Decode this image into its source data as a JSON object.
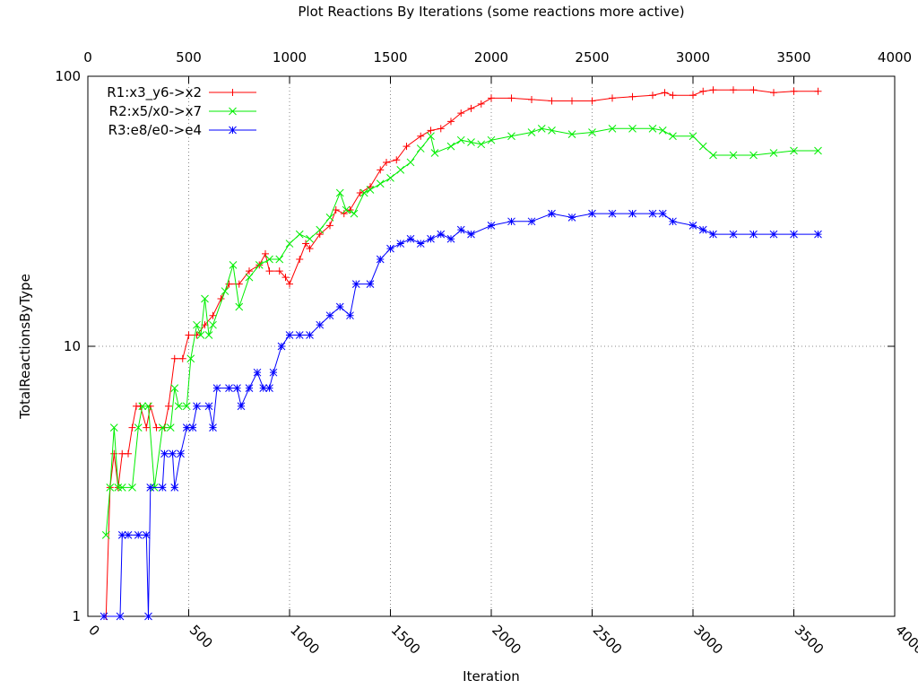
{
  "chart_data": {
    "type": "line",
    "title": "Plot Reactions By Iterations (some reactions more active)",
    "x_label": "Iteration",
    "y_label": "TotalReactionsByType",
    "xlim": [
      0,
      4000
    ],
    "xticks": [
      0,
      500,
      1000,
      1500,
      2000,
      2500,
      3000,
      3500,
      4000
    ],
    "ylim": [
      1,
      100
    ],
    "yticks": [
      1,
      10,
      100
    ],
    "y_scale": "log",
    "grid": true,
    "legend": "top-left",
    "series": [
      {
        "name": "R1:x3_y6->x2",
        "color": "#ff0000",
        "marker": "plus",
        "x": [
          90,
          110,
          130,
          150,
          170,
          200,
          220,
          240,
          260,
          290,
          310,
          340,
          380,
          400,
          430,
          470,
          500,
          540,
          580,
          620,
          660,
          700,
          750,
          800,
          850,
          880,
          900,
          950,
          980,
          1000,
          1050,
          1080,
          1100,
          1150,
          1200,
          1230,
          1270,
          1300,
          1350,
          1400,
          1450,
          1480,
          1530,
          1580,
          1650,
          1700,
          1750,
          1800,
          1850,
          1900,
          1950,
          2000,
          2100,
          2200,
          2300,
          2400,
          2500,
          2600,
          2700,
          2800,
          2860,
          2900,
          3000,
          3050,
          3100,
          3200,
          3300,
          3400,
          3500,
          3620
        ],
        "values": [
          1,
          3,
          4,
          3,
          4,
          4,
          5,
          6,
          6,
          5,
          6,
          5,
          5,
          6,
          9,
          9,
          11,
          11,
          12,
          13,
          15,
          17,
          17,
          19,
          20,
          22,
          19,
          19,
          18,
          17,
          21,
          24,
          23,
          26,
          28,
          32,
          31,
          32,
          37,
          39,
          45,
          48,
          49,
          55,
          60,
          63,
          64,
          68,
          73,
          76,
          79,
          83,
          83,
          82,
          81,
          81,
          81,
          83,
          84,
          85,
          87,
          85,
          85,
          88,
          89,
          89,
          89,
          87,
          88,
          88
        ]
      },
      {
        "name": "R2:x5/x0->x7",
        "color": "#00ee00",
        "marker": "cross",
        "x": [
          90,
          110,
          130,
          150,
          170,
          220,
          250,
          270,
          300,
          330,
          370,
          410,
          430,
          450,
          490,
          510,
          540,
          560,
          580,
          600,
          620,
          680,
          720,
          750,
          800,
          850,
          900,
          950,
          1000,
          1050,
          1100,
          1150,
          1200,
          1250,
          1280,
          1320,
          1370,
          1400,
          1450,
          1500,
          1550,
          1600,
          1650,
          1700,
          1720,
          1800,
          1850,
          1900,
          1950,
          2000,
          2100,
          2200,
          2250,
          2300,
          2400,
          2500,
          2600,
          2700,
          2800,
          2850,
          2900,
          3000,
          3050,
          3100,
          3200,
          3300,
          3400,
          3500,
          3620
        ],
        "values": [
          2,
          3,
          5,
          3,
          3,
          3,
          5,
          6,
          6,
          3,
          5,
          5,
          7,
          6,
          6,
          9,
          12,
          11,
          15,
          11,
          12,
          16,
          20,
          14,
          18,
          20,
          21,
          21,
          24,
          26,
          25,
          27,
          30,
          37,
          32,
          31,
          37,
          38,
          40,
          42,
          45,
          48,
          54,
          60,
          52,
          55,
          58,
          57,
          56,
          58,
          60,
          62,
          64,
          63,
          61,
          62,
          64,
          64,
          64,
          63,
          60,
          60,
          55,
          51,
          51,
          51,
          52,
          53,
          53
        ]
      },
      {
        "name": "R3:e8/e0->e4",
        "color": "#0000ff",
        "marker": "star",
        "x": [
          80,
          160,
          170,
          200,
          250,
          290,
          300,
          310,
          370,
          380,
          420,
          430,
          460,
          490,
          520,
          540,
          600,
          620,
          640,
          700,
          740,
          760,
          800,
          840,
          870,
          900,
          920,
          960,
          1000,
          1050,
          1100,
          1150,
          1200,
          1250,
          1300,
          1330,
          1400,
          1450,
          1500,
          1550,
          1600,
          1650,
          1700,
          1750,
          1800,
          1850,
          1900,
          2000,
          2100,
          2200,
          2300,
          2400,
          2500,
          2600,
          2700,
          2800,
          2850,
          2900,
          3000,
          3050,
          3100,
          3200,
          3300,
          3400,
          3500,
          3620
        ],
        "values": [
          1,
          1,
          2,
          2,
          2,
          2,
          1,
          3,
          3,
          4,
          4,
          3,
          4,
          5,
          5,
          6,
          6,
          5,
          7,
          7,
          7,
          6,
          7,
          8,
          7,
          7,
          8,
          10,
          11,
          11,
          11,
          12,
          13,
          14,
          13,
          17,
          17,
          21,
          23,
          24,
          25,
          24,
          25,
          26,
          25,
          27,
          26,
          28,
          29,
          29,
          31,
          30,
          31,
          31,
          31,
          31,
          31,
          29,
          28,
          27,
          26,
          26,
          26,
          26,
          26,
          26
        ]
      }
    ]
  }
}
